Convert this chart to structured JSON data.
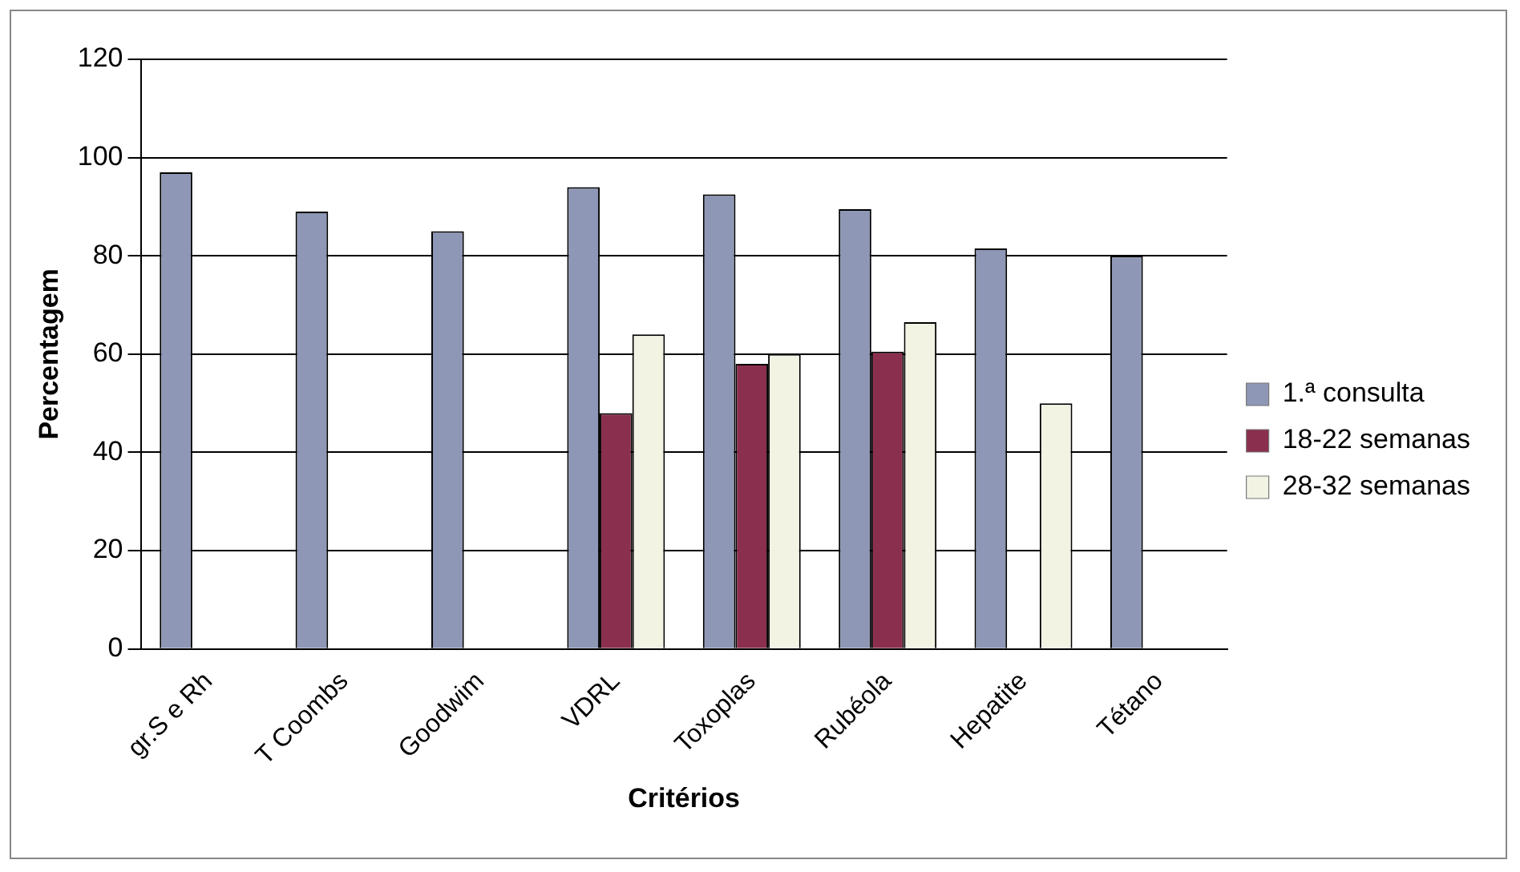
{
  "chart_data": {
    "type": "bar",
    "xlabel": "Critérios",
    "ylabel": "Percentagem",
    "categories": [
      "gr.S e Rh",
      "T Coombs",
      "Goodwim",
      "VDRL",
      "Toxoplas",
      "Rubéola",
      "Hepatite",
      "Tétano"
    ],
    "series": [
      {
        "name": "1.ª consulta",
        "color": "#8e97b5",
        "values": [
          97,
          89,
          85,
          94,
          92.5,
          89.5,
          81.5,
          80
        ]
      },
      {
        "name": "18-22 semanas",
        "color": "#8b2f4e",
        "values": [
          null,
          null,
          null,
          48,
          58,
          60.5,
          null,
          null
        ]
      },
      {
        "name": "28-32 semanas",
        "color": "#f3f3e4",
        "values": [
          null,
          null,
          null,
          64,
          60,
          66.5,
          50,
          null
        ]
      }
    ],
    "ylim": [
      0,
      120
    ],
    "yticks": [
      0,
      20,
      40,
      60,
      80,
      100,
      120
    ],
    "grid": "y",
    "legend": "right"
  }
}
